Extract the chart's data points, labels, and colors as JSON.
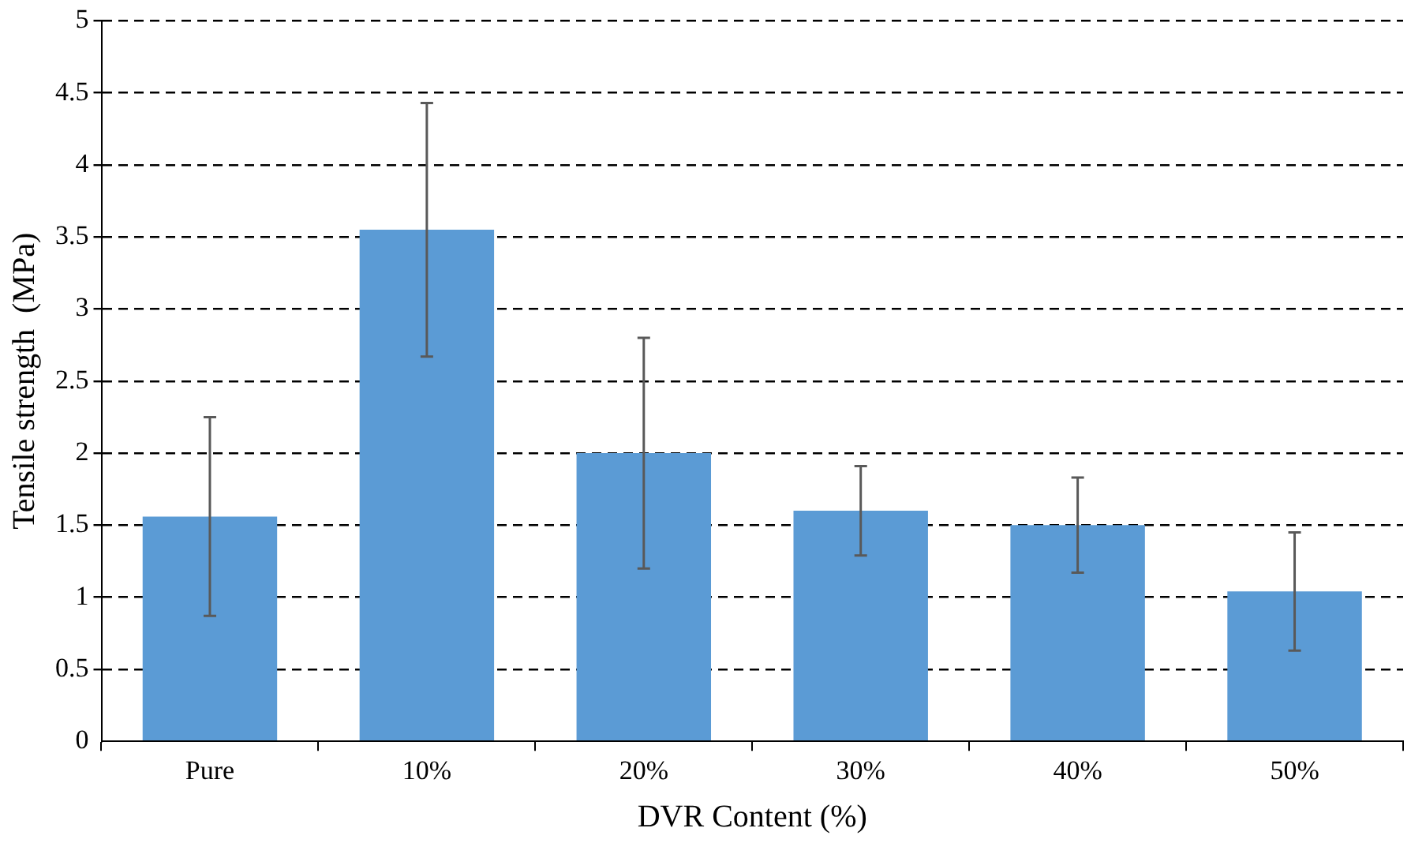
{
  "chart_data": {
    "type": "bar",
    "xlabel": "DVR Content (%)",
    "ylabel": "Tensile strength  (MPa)",
    "categories": [
      "Pure",
      "10%",
      "20%",
      "30%",
      "40%",
      "50%"
    ],
    "values": [
      1.56,
      3.55,
      2.0,
      1.6,
      1.5,
      1.04
    ],
    "errors": [
      0.69,
      0.88,
      0.8,
      0.31,
      0.33,
      0.41
    ],
    "color": "#5b9bd5",
    "ylim": [
      0,
      5
    ],
    "yticks": [
      0,
      0.5,
      1,
      1.5,
      2,
      2.5,
      3,
      3.5,
      4,
      4.5,
      5
    ],
    "grid": "y",
    "legend": false
  }
}
